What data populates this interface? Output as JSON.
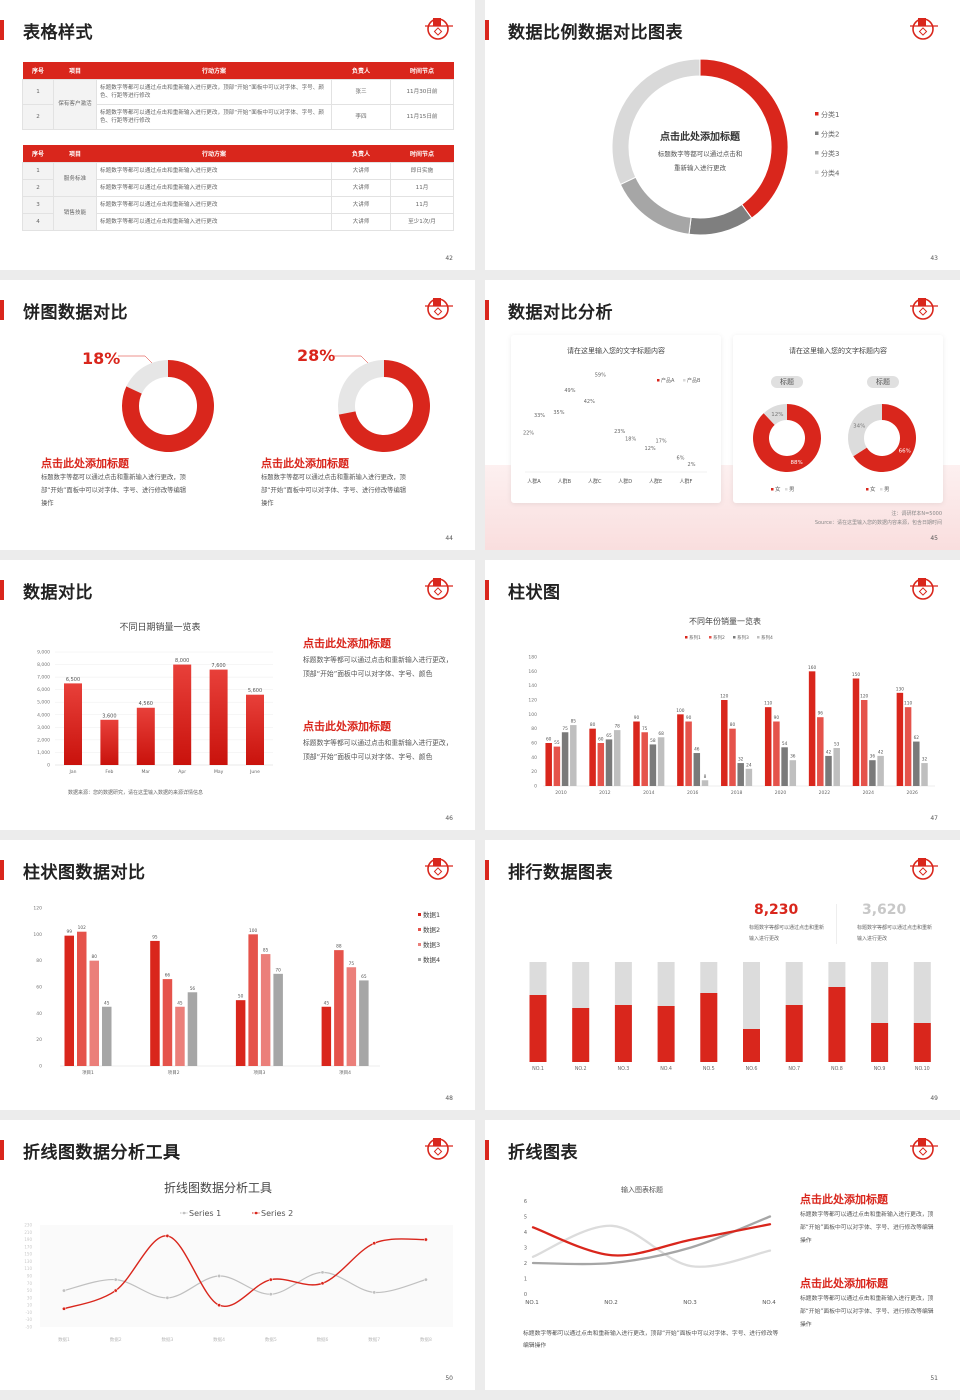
{
  "colors": {
    "accent": "#d9261c",
    "red2": "#e5534b",
    "red3": "#eb7f7a",
    "dark_gray": "#7f7f7f",
    "gray": "#a6a6a6",
    "light_gray": "#d9d9d9"
  },
  "slides": {
    "s42": {
      "title": "表格样式",
      "page": "42",
      "tables": [
        {
          "headers": [
            "序号",
            "项目",
            "行动方案",
            "负责人",
            "时间节点"
          ],
          "rows": [
            [
              "1",
              "保有客户激活",
              "标题数字等都可以通过点击和重新输入进行更改，顶部“开始”面板中可以对字体、字号、颜色、行距等进行修改",
              "张三",
              "11月30日前"
            ],
            [
              "2",
              "保有客户激活",
              "标题数字等都可以通过点击和重新输入进行更改，顶部“开始”面板中可以对字体、字号、颜色、行距等进行修改",
              "李四",
              "11月15日前"
            ]
          ]
        },
        {
          "headers": [
            "序号",
            "项目",
            "行动方案",
            "负责人",
            "时间节点"
          ],
          "rows": [
            [
              "1",
              "服务标准",
              "标题数字等都可以通过点击和重新输入进行更改",
              "大讲师",
              "即日实施"
            ],
            [
              "2",
              "服务标准",
              "标题数字等都可以通过点击和重新输入进行更改",
              "大讲师",
              "11月"
            ],
            [
              "3",
              "销售技能",
              "标题数字等都可以通过点击和重新输入进行更改",
              "大讲师",
              "11月"
            ],
            [
              "4",
              "销售技能",
              "标题数字等都可以通过点击和重新输入进行更改",
              "大讲师",
              "至少1次/月"
            ]
          ]
        }
      ]
    },
    "s43": {
      "title": "数据比例数据对比图表",
      "page": "43",
      "center_title": "点击此处添加标题",
      "center_desc_1": "标题数字等都可以通过点击和",
      "center_desc_2": "重新输入进行更改"
    },
    "s44": {
      "title": "饼图数据对比",
      "page": "44",
      "items": [
        {
          "pct": "18%",
          "heading": "点击此处添加标题",
          "desc": "标题数字等都可以通过点击和重新输入进行更改，顶部“开始”面板中可以对字体、字号、进行修改等编辑操作"
        },
        {
          "pct": "28%",
          "heading": "点击此处添加标题",
          "desc": "标题数字等都可以通过点击和重新输入进行更改，顶部“开始”面板中可以对字体、字号、进行修改等编辑操作"
        }
      ]
    },
    "s45": {
      "title": "数据对比分析",
      "page": "45",
      "card1_title": "请在这里输入您的文字标题内容",
      "card2_title": "请在这里输入您的文字标题内容",
      "note": "注：调研样本N=5000",
      "source": "Source：请在这里输入您的数据内容来源，包含日期时间"
    },
    "s46": {
      "title": "数据对比",
      "page": "46",
      "source": "数据来源：您的数据研究，请在这里输入数据的来源详情信息",
      "blocks": [
        {
          "heading": "点击此处添加标题",
          "body": "标题数字等都可以通过点击和重新输入进行更改，顶部“开始”面板中可以对字体、字号、颜色"
        },
        {
          "heading": "点击此处添加标题",
          "body": "标题数字等都可以通过点击和重新输入进行更改，顶部“开始”面板中可以对字体、字号、颜色"
        }
      ]
    },
    "s47": {
      "title": "柱状图",
      "page": "47"
    },
    "s48": {
      "title": "柱状图数据对比",
      "page": "48"
    },
    "s49": {
      "title": "排行数据图表",
      "page": "49",
      "stats": [
        {
          "value": "8,230",
          "desc": "标题数字等都可以通过点击和重新输入进行更改"
        },
        {
          "value": "3,620",
          "desc": "标题数字等都可以通过点击和重新输入进行更改"
        }
      ]
    },
    "s50": {
      "title": "折线图数据分析工具",
      "page": "50"
    },
    "s51": {
      "title": "折线图表",
      "page": "51",
      "body": "标题数字等都可以通过点击和重新输入进行更改，顶部“开始”面板中可以对字体、字号、进行修改等编辑操作",
      "blocks": [
        {
          "heading": "点击此处添加标题",
          "body": "标题数字等都可以通过点击和重新输入进行更改，顶部“开始”面板中可以对字体、字号、进行修改等编辑操作"
        },
        {
          "heading": "点击此处添加标题",
          "body": "标题数字等都可以通过点击和重新输入进行更改，顶部“开始”面板中可以对字体、字号、进行修改等编辑操作"
        }
      ]
    }
  },
  "chart_data": [
    {
      "type": "pie",
      "categories": [
        "分类1",
        "分类2",
        "分类3",
        "分类4"
      ],
      "values": [
        40,
        12,
        16,
        32
      ],
      "legend": "right"
    },
    {
      "type": "pie",
      "values": [
        82,
        18
      ]
    },
    {
      "type": "pie",
      "values": [
        72,
        28
      ]
    },
    {
      "type": "bar",
      "categories": [
        "人群A",
        "人群B",
        "人群C",
        "人群D",
        "人群E",
        "人群F"
      ],
      "series": [
        {
          "name": "产品A",
          "values": [
            22,
            35,
            42,
            23,
            12,
            6
          ]
        },
        {
          "name": "产品B",
          "values": [
            33,
            49,
            59,
            18,
            17,
            2
          ]
        }
      ],
      "unit": "%",
      "legend": "top-right"
    },
    {
      "type": "pie",
      "title": "标题",
      "categories": [
        "女",
        "男"
      ],
      "values": [
        88,
        12
      ],
      "legend": "bottom"
    },
    {
      "type": "pie",
      "title": "标题",
      "categories": [
        "女",
        "男"
      ],
      "values": [
        66,
        34
      ],
      "legend": "bottom"
    },
    {
      "type": "bar",
      "title": "不同日期销量一览表",
      "categories": [
        "Jan",
        "Feb",
        "Mar",
        "Apr",
        "May",
        "June"
      ],
      "values": [
        6500,
        3600,
        4560,
        8000,
        7600,
        5600
      ],
      "ylim": [
        0,
        9000
      ],
      "yticks": [
        "0",
        "1,000",
        "2,000",
        "3,000",
        "4,000",
        "5,000",
        "6,000",
        "7,000",
        "8,000",
        "9,000"
      ],
      "value_labels": [
        "6,500",
        "3,600",
        "4,560",
        "8,000",
        "7,600",
        "5,600"
      ],
      "grid": true
    },
    {
      "type": "bar",
      "title": "不同年份销量一览表",
      "categories": [
        "2010",
        "2012",
        "2014",
        "2016",
        "2018",
        "2020",
        "2022",
        "2024",
        "2026"
      ],
      "series": [
        {
          "name": "系列1",
          "values": [
            60,
            80,
            90,
            100,
            120,
            110,
            160,
            150,
            130
          ]
        },
        {
          "name": "系列2",
          "values": [
            55,
            60,
            75,
            90,
            80,
            90,
            96,
            120,
            110
          ]
        },
        {
          "name": "系列3",
          "values": [
            75,
            65,
            58,
            46,
            32,
            54,
            42,
            36,
            62
          ]
        },
        {
          "name": "系列4",
          "values": [
            85,
            78,
            68,
            8,
            24,
            36,
            53,
            42,
            32
          ]
        }
      ],
      "ylim": [
        0,
        180
      ],
      "legend": "top"
    },
    {
      "type": "bar",
      "categories": [
        "项目1",
        "项目2",
        "项目3",
        "项目4"
      ],
      "series": [
        {
          "name": "数据1",
          "values": [
            99,
            95,
            50,
            45
          ]
        },
        {
          "name": "数据2",
          "values": [
            102,
            66,
            100,
            88
          ]
        },
        {
          "name": "数据3",
          "values": [
            80,
            45,
            85,
            75
          ]
        },
        {
          "name": "数据4",
          "values": [
            45,
            56,
            70,
            65
          ]
        }
      ],
      "ylim": [
        0,
        120
      ],
      "legend": "right"
    },
    {
      "type": "bar",
      "categories": [
        "NO.1",
        "NO.2",
        "NO.3",
        "NO.4",
        "NO.5",
        "NO.6",
        "NO.7",
        "NO.8",
        "NO.9",
        "NO.10"
      ],
      "values": [
        0.67,
        0.54,
        0.57,
        0.56,
        0.69,
        0.33,
        0.57,
        0.75,
        0.39,
        0.39
      ],
      "ylim": [
        0,
        1
      ]
    },
    {
      "type": "line",
      "title": "折线图数据分析工具",
      "categories": [
        "数据1",
        "数据2",
        "数据3",
        "数据4",
        "数据5",
        "数据6",
        "数据7",
        "数据8"
      ],
      "series": [
        {
          "name": "Series 1",
          "values": [
            50,
            80,
            30,
            90,
            40,
            100,
            45,
            80
          ]
        },
        {
          "name": "Series 2",
          "values": [
            0,
            50,
            200,
            10,
            80,
            70,
            180,
            190
          ]
        }
      ],
      "ylim": [
        -50,
        230
      ],
      "yticks": [
        230,
        210,
        190,
        170,
        150,
        130,
        110,
        90,
        70,
        50,
        30,
        10,
        -10,
        -30,
        -50
      ],
      "legend": "top"
    },
    {
      "type": "line",
      "title": "输入图表标题",
      "categories": [
        "NO.1",
        "NO.2",
        "NO.3",
        "NO.4"
      ],
      "series": [
        {
          "values": [
            4.3,
            2.5,
            3.5,
            4.5
          ]
        },
        {
          "values": [
            2,
            2,
            3,
            5
          ]
        },
        {
          "values": [
            2.4,
            4.4,
            1.8,
            2.8
          ]
        }
      ],
      "ylim": [
        0,
        6
      ]
    }
  ]
}
